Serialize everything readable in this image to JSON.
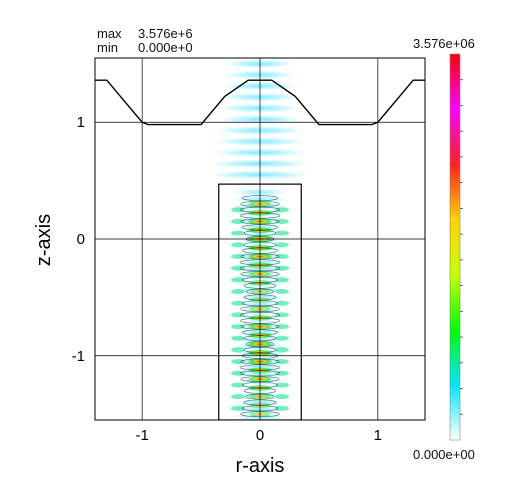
{
  "header": {
    "max_label": "max",
    "max_value": "3.576e+6",
    "min_label": "min",
    "min_value": "0.000e+0"
  },
  "colorbar": {
    "top_label": "3.576e+06",
    "bottom_label": "0.000e+00",
    "stops": [
      "#ffffff",
      "#00e5ff",
      "#00ff00",
      "#c8ff00",
      "#ffd400",
      "#ff2020",
      "#ff00ff",
      "#ff0000"
    ]
  },
  "chart_data": {
    "type": "heatmap",
    "title": "",
    "xlabel": "r-axis",
    "ylabel": "z-axis",
    "xlim": [
      -1.4,
      1.4
    ],
    "ylim": [
      -1.55,
      1.55
    ],
    "xticks": [
      -1,
      0,
      1
    ],
    "xtick_labels": [
      "-1",
      "0",
      "1"
    ],
    "yticks": [
      -1,
      0,
      1
    ],
    "ytick_labels": [
      "-1",
      "0",
      "1"
    ],
    "grid": true,
    "field_range": [
      0.0,
      3576000.0
    ],
    "boundary_profile": {
      "r": [
        -1.4,
        -1.3,
        -1.0,
        -0.95,
        -0.5,
        -0.3,
        -0.1,
        0.1,
        0.3,
        0.5,
        0.95,
        1.0,
        1.3,
        1.4
      ],
      "z": [
        1.36,
        1.36,
        1.0,
        0.98,
        0.98,
        1.22,
        1.36,
        1.36,
        1.22,
        0.98,
        0.98,
        1.0,
        1.36,
        1.36
      ]
    },
    "rectangle": {
      "r": [
        -0.35,
        0.35
      ],
      "z": [
        -1.55,
        0.47
      ]
    }
  }
}
